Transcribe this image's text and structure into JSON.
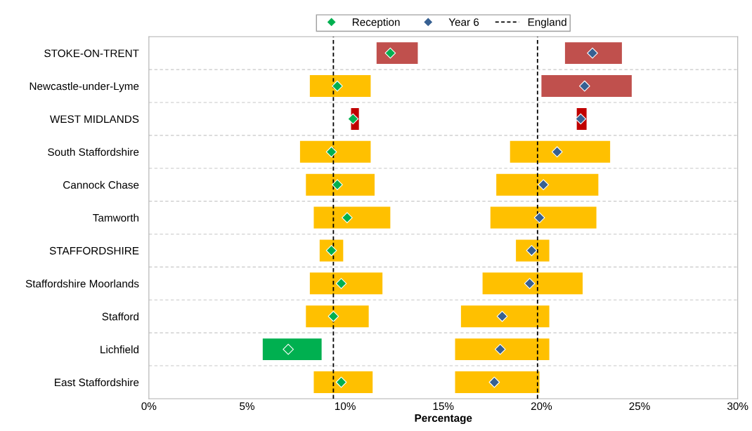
{
  "chart_data": {
    "type": "bar",
    "orientation": "horizontal",
    "xlabel": "Percentage",
    "categories": [
      "STOKE-ON-TRENT",
      "Newcastle-under-Lyme",
      "WEST MIDLANDS",
      "South Staffordshire",
      "Cannock Chase",
      "Tamworth",
      "STAFFORDSHIRE",
      "Staffordshire Moorlands",
      "Stafford",
      "Lichfield",
      "East Staffordshire"
    ],
    "series": [
      {
        "base": [
          11.6,
          8.2,
          10.3,
          7.7,
          8.0,
          8.4,
          8.7,
          8.2,
          8.0,
          5.8,
          8.4
        ],
        "values": [
          2.1,
          3.1,
          0.4,
          3.6,
          3.5,
          3.9,
          1.2,
          3.7,
          3.2,
          3.0,
          3.0
        ],
        "colors": [
          "#c0504d",
          "#ffc000",
          "#c00000",
          "#ffc000",
          "#ffc000",
          "#ffc000",
          "#ffc000",
          "#ffc000",
          "#ffc000",
          "#00b050",
          "#ffc000"
        ]
      },
      {
        "base": [
          21.2,
          20.0,
          21.8,
          18.4,
          17.7,
          17.4,
          18.7,
          17.0,
          15.9,
          15.6,
          15.6
        ],
        "values": [
          2.9,
          4.6,
          0.5,
          5.1,
          5.2,
          5.4,
          1.7,
          5.1,
          4.5,
          4.8,
          4.3
        ],
        "colors": [
          "#c0504d",
          "#c0504d",
          "#c00000",
          "#ffc000",
          "#ffc000",
          "#ffc000",
          "#ffc000",
          "#ffc000",
          "#ffc000",
          "#ffc000",
          "#ffc000"
        ]
      },
      {
        "type": "scatter",
        "name": "Reception",
        "color": "#00b050",
        "values": [
          12.3,
          9.6,
          10.4,
          9.3,
          9.6,
          10.1,
          9.3,
          9.8,
          9.4,
          7.1,
          9.8
        ]
      },
      {
        "type": "scatter",
        "name": "Year 6",
        "color": "#376092",
        "values": [
          22.6,
          22.2,
          22.0,
          20.8,
          20.1,
          19.9,
          19.5,
          19.4,
          18.0,
          17.9,
          17.6
        ]
      }
    ],
    "ref_lines": [
      {
        "axis": "x",
        "value": 9.4,
        "label": "England",
        "color": "#000000",
        "line_style": "dashed"
      },
      {
        "axis": "x",
        "value": 19.8,
        "color": "#000000",
        "line_style": "dashed"
      }
    ],
    "xlim": [
      0,
      30
    ],
    "xticks": [
      {
        "value": 0,
        "label": "0%"
      },
      {
        "value": 5,
        "label": "5%"
      },
      {
        "value": 10,
        "label": "10%"
      },
      {
        "value": 15,
        "label": "15%"
      },
      {
        "value": 20,
        "label": "20%"
      },
      {
        "value": 25,
        "label": "25%"
      },
      {
        "value": 30,
        "label": "30%"
      }
    ],
    "grid": "y",
    "legend": "top",
    "marker": "diamond"
  }
}
